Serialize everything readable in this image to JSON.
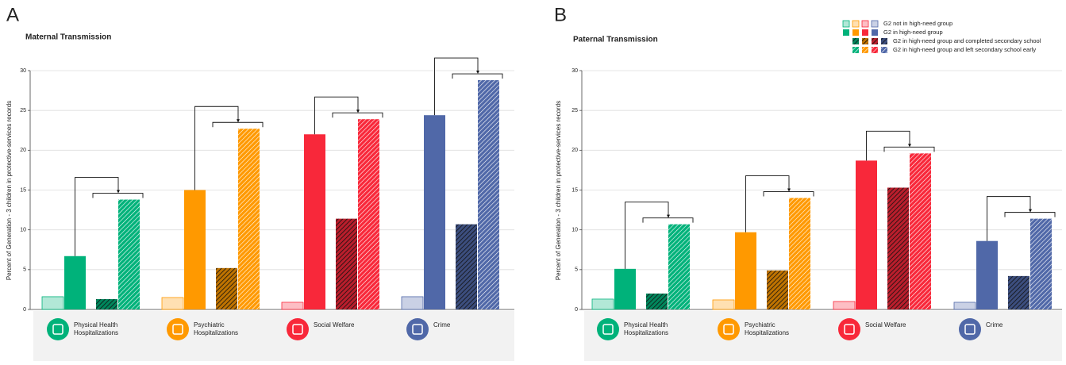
{
  "chart_data": [
    {
      "type": "bar",
      "panel": "A",
      "title": "Maternal Transmission",
      "ylabel": "Percent of Generation - 3 children in protective-services records",
      "categories": [
        "Physical Health Hospitalizations",
        "Psychiatric Hospitalizations",
        "Social Welfare",
        "Crime"
      ],
      "category_colors": [
        "#00b27a",
        "#ff9900",
        "#f8283a",
        "#5068a8"
      ],
      "series": [
        {
          "pattern": "light",
          "values": [
            1.6,
            1.5,
            0.9,
            1.6
          ]
        },
        {
          "pattern": "solid",
          "values": [
            6.7,
            15.0,
            22.0,
            24.4
          ]
        },
        {
          "pattern": "dark-hatch",
          "values": [
            1.3,
            5.2,
            11.4,
            10.7
          ]
        },
        {
          "pattern": "light-hatch",
          "values": [
            13.8,
            22.7,
            23.9,
            28.8
          ]
        }
      ],
      "ylim": [
        0,
        30
      ],
      "yticks": [
        0,
        5,
        10,
        15,
        20,
        25,
        30
      ],
      "grid": true
    },
    {
      "type": "bar",
      "panel": "B",
      "title": "Paternal Transmission",
      "ylabel": "Percent of Generation - 3 children in protective-services records",
      "categories": [
        "Physical Health Hospitalizations",
        "Psychiatric Hospitalizations",
        "Social Welfare",
        "Crime"
      ],
      "category_colors": [
        "#00b27a",
        "#ff9900",
        "#f8283a",
        "#5068a8"
      ],
      "series": [
        {
          "name": "G2 not in high-need group",
          "pattern": "light",
          "values": [
            1.3,
            1.2,
            1.0,
            0.9
          ]
        },
        {
          "name": "G2 in high-need group",
          "pattern": "solid",
          "values": [
            5.1,
            9.7,
            18.7,
            8.6
          ]
        },
        {
          "name": "G2 in high-need group and completed secondary school",
          "pattern": "dark-hatch",
          "values": [
            2.0,
            4.9,
            15.3,
            4.2
          ]
        },
        {
          "name": "G2 in high-need group and left secondary school early",
          "pattern": "light-hatch",
          "values": [
            10.7,
            14.0,
            19.6,
            11.4
          ]
        }
      ],
      "ylim": [
        0,
        30
      ],
      "yticks": [
        0,
        5,
        10,
        15,
        20,
        25,
        30
      ],
      "grid": true,
      "legend": "top-right"
    }
  ]
}
